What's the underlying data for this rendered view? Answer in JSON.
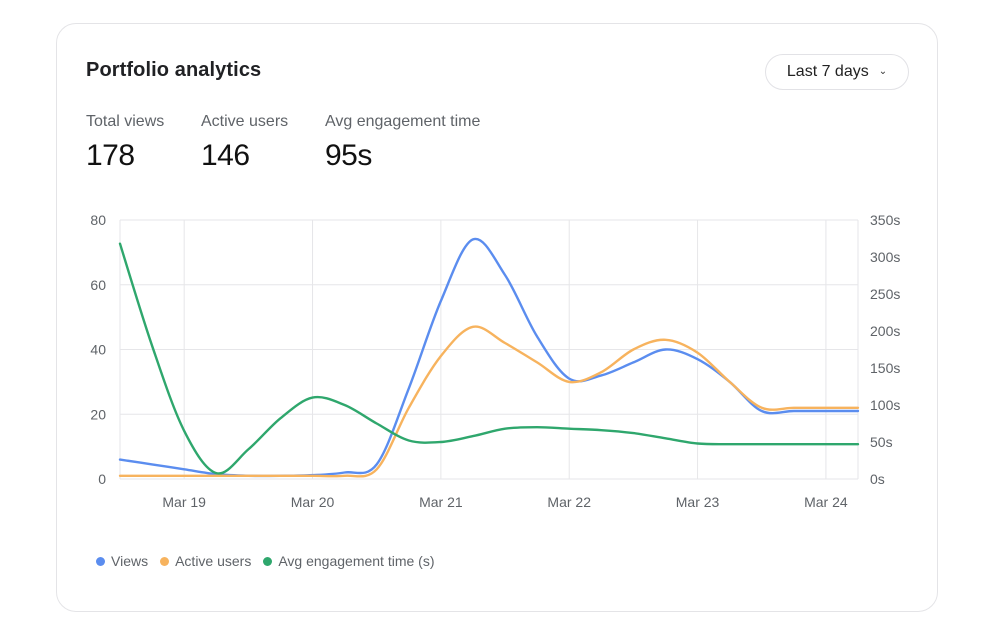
{
  "card": {
    "title": "Portfolio analytics",
    "range_label": "Last 7 days"
  },
  "metrics": [
    {
      "label": "Total views",
      "value": "178"
    },
    {
      "label": "Active users",
      "value": "146"
    },
    {
      "label": "Avg engagement time",
      "value": "95s"
    }
  ],
  "chart_data": {
    "type": "line",
    "x": [
      "Mar 18 12:00",
      "Mar 18 18:00",
      "Mar 19 00:00",
      "Mar 19 06:00",
      "Mar 19 12:00",
      "Mar 19 18:00",
      "Mar 20 00:00",
      "Mar 20 06:00",
      "Mar 20 12:00",
      "Mar 20 18:00",
      "Mar 21 00:00",
      "Mar 21 06:00",
      "Mar 21 12:00",
      "Mar 21 18:00",
      "Mar 22 00:00",
      "Mar 22 06:00",
      "Mar 22 12:00",
      "Mar 22 18:00",
      "Mar 23 00:00",
      "Mar 23 06:00",
      "Mar 23 12:00",
      "Mar 23 18:00",
      "Mar 24 00:00",
      "Mar 24 06:00"
    ],
    "x_tick_labels": [
      "Mar 19",
      "Mar 20",
      "Mar 21",
      "Mar 22",
      "Mar 23",
      "Mar 24"
    ],
    "left_axis": {
      "ylim": [
        0,
        80
      ],
      "ticks": [
        "0",
        "20",
        "40",
        "60",
        "80"
      ]
    },
    "right_axis": {
      "ylim": [
        0,
        350
      ],
      "ticks": [
        "0s",
        "50s",
        "100s",
        "150s",
        "200s",
        "250s",
        "300s",
        "350s"
      ]
    },
    "grid": true,
    "legend_position": "bottom-left",
    "series": [
      {
        "name": "Views",
        "axis": "left",
        "color": "#5b8def",
        "values": [
          6,
          4.5,
          3,
          1.5,
          1,
          1,
          1.2,
          2,
          4.5,
          28,
          55,
          74,
          63,
          44,
          31,
          32,
          36,
          40,
          37,
          30,
          21,
          21,
          21,
          21
        ]
      },
      {
        "name": "Active users",
        "axis": "left",
        "color": "#f7b35e",
        "values": [
          1,
          1,
          1,
          1,
          1,
          1,
          1,
          1,
          3,
          22,
          38,
          47,
          42,
          36,
          30,
          33,
          40,
          43,
          39,
          30,
          22,
          22,
          22,
          22
        ]
      },
      {
        "name": "Avg engagement time (s)",
        "axis": "right",
        "color": "#2fa76d",
        "values": [
          318,
          180,
          65,
          8,
          40,
          82,
          110,
          100,
          75,
          52,
          50,
          58,
          68,
          70,
          68,
          66,
          62,
          55,
          48,
          47,
          47,
          47,
          47,
          47
        ]
      }
    ]
  }
}
